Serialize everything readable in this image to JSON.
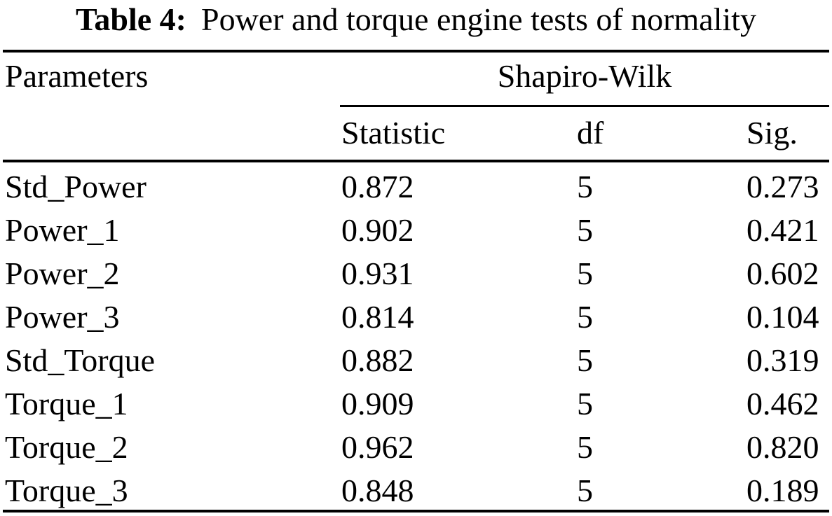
{
  "title": {
    "label": "Table 4:",
    "text": "Power and torque engine tests of normality"
  },
  "table": {
    "parameters_header": "Parameters",
    "group_header": "Shapiro-Wilk",
    "sub_headers": [
      "Statistic",
      "df",
      "Sig."
    ],
    "rows": [
      {
        "parameter": "Std_Power",
        "statistic": "0.872",
        "df": "5",
        "sig": "0.273"
      },
      {
        "parameter": "Power_1",
        "statistic": "0.902",
        "df": "5",
        "sig": "0.421"
      },
      {
        "parameter": "Power_2",
        "statistic": "0.931",
        "df": "5",
        "sig": "0.602"
      },
      {
        "parameter": "Power_3",
        "statistic": "0.814",
        "df": "5",
        "sig": "0.104"
      },
      {
        "parameter": "Std_Torque",
        "statistic": "0.882",
        "df": "5",
        "sig": "0.319"
      },
      {
        "parameter": "Torque_1",
        "statistic": "0.909",
        "df": "5",
        "sig": "0.462"
      },
      {
        "parameter": "Torque_2",
        "statistic": "0.962",
        "df": "5",
        "sig": "0.820"
      },
      {
        "parameter": "Torque_3",
        "statistic": "0.848",
        "df": "5",
        "sig": "0.189"
      }
    ]
  },
  "colors": {
    "text": "#000000",
    "background": "#ffffff",
    "rule": "#000000"
  }
}
